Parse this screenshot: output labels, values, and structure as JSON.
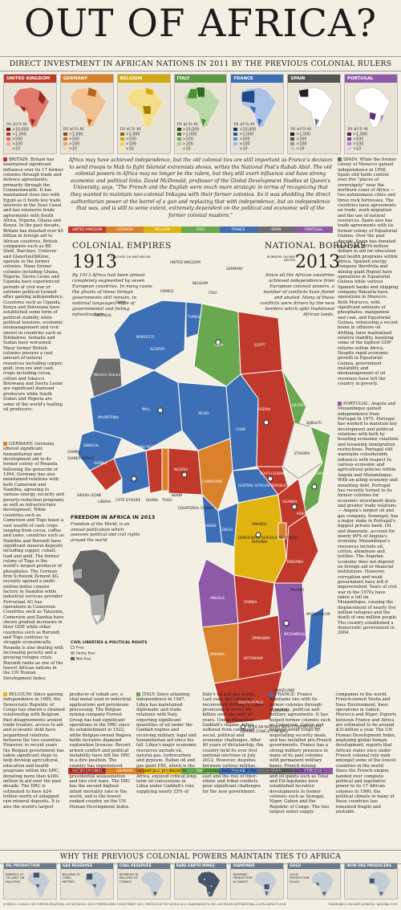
{
  "title": "OUT OF AFRICA?",
  "subtitle": "DIRECT INVESTMENT IN AFRICAN NATIONS IN 2011 BY THE PREVIOUS COLONIAL RULERS",
  "colors": {
    "uk": "#c0392b",
    "germany": "#d9822b",
    "belgium": "#f0c419",
    "italy": "#6aa84f",
    "france": "#3d6fb6",
    "spain": "#6d6d6d",
    "portugal": "#8e5aa8",
    "bg": "#f4efe3"
  },
  "investment_maps": [
    {
      "label": "UNITED KINGDOM",
      "unit": "IN $US-M",
      "legend": [
        ">10,000",
        ">1,000",
        ">500",
        ">100",
        ">10"
      ]
    },
    {
      "label": "GERMANY",
      "unit": "IN $US-M",
      "legend": [
        ">1,000",
        ">500",
        ">100",
        ">10"
      ]
    },
    {
      "label": "BELGIUM",
      "unit": "IN $US-M",
      "legend": [
        ">1,000",
        ">500",
        ">100",
        ">10"
      ]
    },
    {
      "label": "ITALY",
      "unit": "IN $US-M",
      "legend": [
        ">10,000",
        ">1,000",
        ">500",
        ">100",
        ">10"
      ]
    },
    {
      "label": "FRANCE",
      "unit": "IN $US-M",
      "legend": [
        ">10,000",
        ">1,000",
        ">500",
        ">100",
        ">10"
      ]
    },
    {
      "label": "SPAIN",
      "unit": "IN $US-M",
      "legend": [
        ">1,000",
        ">500",
        ">100",
        ">10"
      ]
    },
    {
      "label": "PORTUGAL",
      "unit": "IN $US-M",
      "legend": [
        ">1,000",
        ">500",
        ">100",
        ">10"
      ]
    }
  ],
  "intro": "Africa may have achieved independence, but the old colonial ties are still important as France's decision to send troops to Mali to fight Islamist extremists shows, writes the National Post's Rubab Abid. The old colonial powers in Africa may no longer be the rulers, but they still exert influence and have strong economic and political links. David McDonald, professor of the Global Development Studies at Queen's University, says, \"The French and the English were much more strategic in terms of recognizing that they wanted to maintain neo-colonial linkages with their former colonies. So it was shedding the direct authoritarian power at the barrel of a gun and replacing that with independence, but an independence that was, and is still to some extent, extremely dependent on the political and economic will of the former colonial masters.\"",
  "powers": [
    "UNITED KINGDOM",
    "GERMANY",
    "BELGIUM",
    "ITALY",
    "FRANCE",
    "SPAIN",
    "PORTUGAL"
  ],
  "empires": {
    "header": "COLONIAL EMPIRES",
    "year": "1913",
    "colors_note": "COLOURS ON MAP BELOW",
    "text": "By 1913 Africa had been almost completely segmented by seven European countries. In many cases the ghosts of these foreign governments still remain, in national languages, style of governmental and failing infrastructure."
  },
  "borders": {
    "header": "NATIONAL BORDERS",
    "year": "2013",
    "note": "BORDERS ON MAP BELOW",
    "text": "Since all the African countries achieved independence from European colonial powers, a number of conflicts have flared and abated. Many of these conflicts were driven by the new borders which split traditional African lands."
  },
  "freedom": {
    "header": "FREEDOM IN AFRICA IN 2013",
    "text": "Freedom of the World, is an annual publication which assesses political and civil rights around the world",
    "legend_title": "CIVIL LIBERTIES & POLITICAL RIGHTS",
    "legend": [
      "Free",
      "Partly free",
      "Not free"
    ]
  },
  "killed_note": "AFRICAN NATIONS WITH CITIZENS KILLED DURING CONFLICT IN 2012",
  "map_labels_colonial": [
    "UNITED KINGDOM",
    "BELGIUM",
    "FRANCE",
    "SPAIN",
    "PORTUGAL",
    "GERMANY",
    "ITALY"
  ],
  "map_labels_countries": [
    "MOROCCO",
    "ALGERIA",
    "TUNISIA",
    "LIBYA",
    "EGYPT",
    "Western Sahara",
    "MAURITANIA",
    "MALI",
    "NIGER",
    "CHAD",
    "SUDAN",
    "SOUTH SUDAN",
    "ERITREA",
    "DJIBOUTI",
    "ETHIOPIA",
    "SOMALIA",
    "SENEGAL",
    "GAMBIA",
    "GUINEA-BISSAU",
    "GUINEA",
    "SIERRA LEONE",
    "LIBERIA",
    "COTE D'IVOIRE",
    "GHANA",
    "TOGO",
    "BENIN",
    "BURKINA FASO",
    "NIGERIA",
    "CAMEROON",
    "CENTRAL AFRICAN REPUBLIC",
    "EQUATORIAL GUINEA",
    "GABON",
    "CONGO",
    "DEMOCRATIC REPUBLIC OF CONGO",
    "UGANDA",
    "KENYA",
    "RWANDA",
    "BURUNDI",
    "TANZANIA",
    "ANGOLA",
    "ZAMBIA",
    "MALAWI",
    "MOZAMBIQUE",
    "ZIMBABWE",
    "NAMIBIA",
    "BOTSWANA",
    "SOUTH AFRICA",
    "LESOTHO",
    "SWAZILAND",
    "MADAGASCAR"
  ],
  "columns": {
    "britain": "BRITAIN: Britain has maintained significant influence over its 17 former colonies through trade and defence agreements, primarily through the Commonwealth. It has maintained close ties with Egypt as it holds key trade interests in the Suez Canal and has extensive trade agreements with South Africa, Nigeria, Ghana and Kenya. In the past decade, Britain has donated over $5 billion in foreign aid to African countries. British companies such as BP, Shell, Barclays, Unilever and GlaxoSmithKline, operate in the former colonies. Many former colonies including Ghana, Nigeria, Sierra Leone and Uganda have experienced periods of civil war or extreme political turmoil after gaining independence. Countries such as Uganda, Kenya and Botswana have established some form of political stability while political tensions, economic mismanagement and civic unrest in countries such as Zimbabwe, Somalia and Sudan have worsened. Many former British colonies possess a vast amount of natural resources including copper, gold, iron ore and cash crops including cocoa, cotton and tobacco. Botswana and Sierra Leone are significant diamond producers while South Sudan and Nigeria are some of the world's leading oil producers.",
    "germany": "GERMANY: Germany offered significant humanitarian and development aid to its former colony of Rwanda following the genocide of 1994. Germany has also maintained relations with both Cameroon and Namibia, agreeing to various energy, security and poverty-reduction programs as well as infrastructure development. While countries such as Cameroon and Togo boast a vast wealth of cash crops ranging from cocoa, coffee and yams, countries such as Namibia and Burundi have significant mineral deposits including copper, cobalt, lead and gold. The former colony of Togo is the world's largest producer of phosphates. The German firm Schwenk Zement KG recently opened a multi-million-dollar cement factory in Namibia while industrial services provider Ferrostaal AG has operations in Cameroon. Countries such as Tanzania, Cameroon and Zambia have shown gradual increases in their GDP, while other countries such as Burundi and Togo continue to struggle economically. Rwanda is also dealing with increasing poverty and a growing refugee crisis. Burundi ranks as one of the lowest African nations in the UN Human Development Index.",
    "spain": "SPAIN: While the former colony of Morocco gained independence in 1956, Spain still holds control over five \"places of sovereignty\" near the northern coast of Africa — two autonomous cities and three rock fortresses. The countries have agreements on trade, work migration and the use of natural resources. Spain also has trade agreements with its former colony of Equatorial Guinea. Over the past decade, Spain has donated more than $700-million dollars in aid for education and health programs within Africa. Spanish energy company Iberdrola and mining giant Repsol have operations in Equatorial Guinea while various Spanish banks and shipping company Balearia have operations in Morocco. Both Morocco, with significant amounts of phosphates, manganese and coal, and Equatorial Guinea, witnessing a recent boom in offshore oil drilling, have maintained relative stability, boasting some of the highest GDP returns within Africa. Despite rapid economic growth in Equatorial Guinea, government instability and mismanagement of oil revenues have left the country in poverty.",
    "portugal": "PORTUGAL: Angola and Mozambique gained independence from Portugal in 1975. Portugal has worked to maintain key development and political relations with both by boosting economic relations and lessening immigration restrictions. Portugal still maintains considerable influence with respect to various economic and agricultural policies within Angola and Mozambique. With an ailing economy and mounting debt, Portugal has recently turned to its former colonies for economic investment deals and greater trade relations — Angola's largest oil and gas company, Sonangol, has a major stake in Portugal's biggest private bank. Oil and diamonds, account for nearly 60% of Angola's economy. Mozambique's resources include oil, cotton, aluminum and textiles. The Angolan economy does not depend on foreign aid or financial institutions. However, corruption and weak government have left it impoverished. Years of civil war in the 1970s have taken a toll on Mozambique, causing the displacement of nearly five million refugees and the death of one million people. The country established a democratic government in 2004.",
    "belgium": "BELGIUM: Since gaining independence in 1960, the Democratic Republic of Congo has shared a strained relationship with Belgium. Past disagreements around trade treaties, access to aid and economic debt have jeopardized relations between the two countries. However, in recent years the Belgian government has taken significant steps to help develop agricultural, education and health programs within the DRC, donating more than $300-million in aid over the past decade. The DRC is estimated to have $24-trillion worth of untapped raw mineral deposits. It is also the world's largest producer of cobalt ore, a vital metal used in industrial applications and petroleum processing. The Belgian mining company Forrest Group has had significant operations in the DRC since its establishment in 1922, while Belgian-owned Bagera holds lucrative diamond exploration licences. Recent armed conflict and political instability have left the DRC in a dire position. The country has experienced three coups, one presidential assassination and two civil wars. The DRC has the second highest infant mortality rate in the world, and is the lowest ranked country on the UN Human Development Index.",
    "italy": "ITALY: Since attaining independence in 1947, Libya has maintained diplomatic and trade relations with Italy, exporting significant quantities of oil under the Gaddafi regime and receiving military, legal and humanitarian aid since his fall. Libya's major economic resources include oil, natural gas, hydrocarbon and gypsum. Italian oil and gas giant ENI, which is the largest gas producer in Africa, enjoyed critical long-term oil concessions in Libya under Gaddafi's rule, supplying nearly 25% of Italy's oil and gas needs. Last year, the company reconvened drilling in Libya promising to invest $8-billion over the next 10 years. Under Muammar Gaddafi's regime, Libya suffered from continued social, political and economic challenges. After 40 years of dictatorship, the country held its ever first national elections in July 2012. However, disputes between various militias, growing instability in the east and the rise of inter-ethnic and tribal conflicts pose significant challenges for the new government.",
    "france": "FRANCE: France maintains ties with its former colonies through economic, political and military agreements. It has helped former colonies such as Cameroon, Gabon and Senegal avoid coups by negotiating security deals, and has installed pro-French governments. France has a strong military presence in many of its past colonies with permanent military bases. French mining companies such as Areva and oil giants such as Total and Elf-Aquitaine have established lucrative developments in former colonies such as Senegal, Niger, Gabon and the Republic of Congo. The two largest water supply companies in the world, French-owned Veolia and Suez Environment, have operations in Gabon, Morocco and Niger. Exports between France and Africa are estimated to be around $35-billion a year. The UN Human Development Index, analyzing global human development, reports that African states once under French colonial rule rank amongst some of the lowest countries in the world. Since the French empire handed over complete political and legislative power to its 17 African colonies in 1960, the political climate in many of these countries has remained fragile and unstable."
  },
  "why_header": "WHY THE PREVIOUS COLONIAL POWERS MAINTAIN TIES TO AFRICA",
  "resources": [
    {
      "label": "OIL PRODUCTION",
      "unit": "BARRELS OF OIL DAILY (IN MILLIONS)"
    },
    {
      "label": "GAS RESERVES",
      "unit": "BILLIONS OF CUBIC METRES"
    },
    {
      "label": "COAL RESERVES",
      "unit": "RESERVES IN MILLIONS OF TONNES"
    },
    {
      "label": "RARE EARTH MINES",
      "unit": ""
    },
    {
      "label": "DIAMONDS",
      "unit": "DIAMOND PRODUCTION IN CARATS"
    },
    {
      "label": "GOLD",
      "unit": "GOLD PRODUCTION IN KGS"
    },
    {
      "label": "IRON ORE PRODUCERS",
      "unit": ""
    }
  ],
  "sources": "SOURCES: COUNCIL FOR FOREIGN RELATIONS; CIA FACTBOOK; OECD FOREIGN DIRECT INVESTMENT 2011; FREEDOM IN THE WORLD 2013; DIAMONDFACTS.ORG; ACCESSION INTERNATIONAL & AFRICANFACTS.COM",
  "credit": "RUBAB ABID & RICHARD JOHNSON / NATIONAL POST"
}
